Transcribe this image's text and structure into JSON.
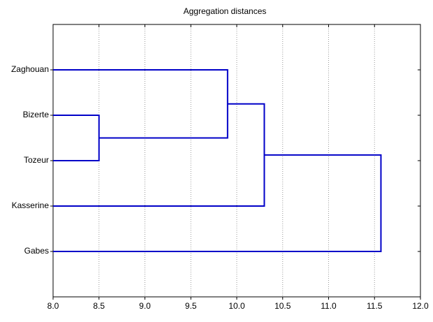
{
  "chart_data": {
    "type": "dendrogram",
    "title": "Aggregation distances",
    "labels": [
      "Zaghouan",
      "Bizerte",
      "Tozeur",
      "Kasserine",
      "Gabes"
    ],
    "merges": [
      {
        "a": 1,
        "b": 2,
        "distance": 8.5
      },
      {
        "a": 0,
        "b": 5,
        "distance": 9.9
      },
      {
        "a": 6,
        "b": 3,
        "distance": 10.3
      },
      {
        "a": 7,
        "b": 4,
        "distance": 11.57
      }
    ],
    "color": "#0000c8",
    "xlim": [
      8,
      12
    ],
    "xticks": [
      {
        "value": 8,
        "label": "8.0"
      },
      {
        "value": 8.5,
        "label": "8.5"
      },
      {
        "value": 9,
        "label": "9.0"
      },
      {
        "value": 9.5,
        "label": "9.5"
      },
      {
        "value": 10,
        "label": "10.0"
      },
      {
        "value": 10.5,
        "label": "10.5"
      },
      {
        "value": 11,
        "label": "11.0"
      },
      {
        "value": 11.5,
        "label": "11.5"
      },
      {
        "value": 12,
        "label": "12.0"
      }
    ],
    "grid": true
  }
}
